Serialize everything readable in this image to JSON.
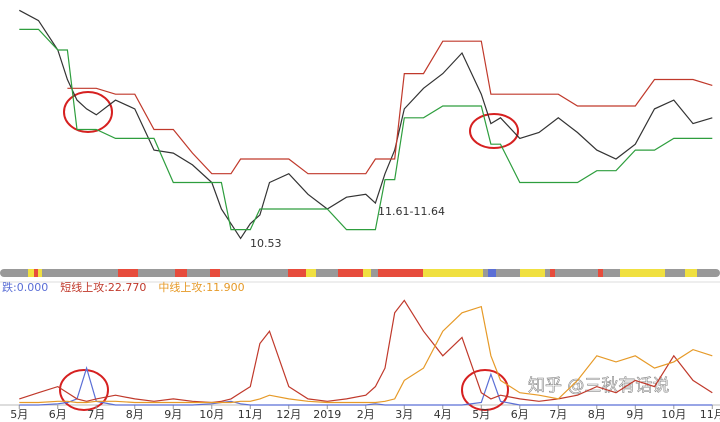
{
  "chart_data": [
    {
      "type": "line",
      "x": [
        0,
        0.5,
        1,
        1.25,
        1.5,
        1.75,
        2,
        2.5,
        3,
        3.5,
        4,
        4.5,
        5,
        5.25,
        5.5,
        5.75,
        6,
        6.25,
        6.5,
        7,
        7.5,
        8,
        8.5,
        9,
        9.25,
        9.5,
        9.75,
        10,
        10.5,
        11,
        11.5,
        12,
        12.25,
        12.5,
        13,
        13.5,
        14,
        14.5,
        15,
        15.5,
        16,
        16.5,
        17,
        17.5,
        18
      ],
      "xlim": [
        -0.5,
        18.2
      ],
      "ylim": [
        9.9,
        18.8
      ],
      "series": [
        {
          "color": "#333333",
          "values": [
            18.45,
            18.1,
            17.1,
            16.1,
            15.4,
            15.1,
            14.9,
            15.4,
            15.1,
            13.7,
            13.6,
            13.2,
            12.6,
            11.7,
            11.2,
            10.7,
            11.2,
            11.5,
            12.6,
            12.9,
            12.2,
            11.7,
            12.1,
            12.2,
            11.9,
            12.9,
            13.7,
            15.1,
            15.8,
            16.3,
            17.0,
            15.6,
            14.6,
            14.8,
            14.1,
            14.3,
            14.8,
            14.3,
            13.7,
            13.4,
            13.9,
            15.1,
            15.4,
            14.6,
            14.8
          ]
        },
        {
          "color": "#c0392b",
          "values": [
            null,
            null,
            null,
            15.8,
            15.8,
            15.8,
            15.8,
            15.6,
            15.6,
            14.4,
            14.4,
            13.6,
            12.9,
            12.9,
            12.9,
            13.4,
            13.4,
            13.4,
            13.4,
            13.4,
            12.9,
            12.9,
            12.9,
            12.9,
            13.4,
            13.4,
            13.4,
            16.3,
            16.3,
            17.4,
            17.4,
            17.4,
            15.6,
            15.6,
            15.6,
            15.6,
            15.6,
            15.2,
            15.2,
            15.2,
            15.2,
            16.1,
            16.1,
            16.1,
            15.9
          ]
        },
        {
          "color": "#2e9e3e",
          "values": [
            17.8,
            17.8,
            17.1,
            17.1,
            14.4,
            14.4,
            14.4,
            14.1,
            14.1,
            14.1,
            12.6,
            12.6,
            12.6,
            12.6,
            11.0,
            11.0,
            11.0,
            11.7,
            11.7,
            11.7,
            11.7,
            11.7,
            11.0,
            11.0,
            11.0,
            12.7,
            12.7,
            14.8,
            14.8,
            15.2,
            15.2,
            15.2,
            13.9,
            13.9,
            12.6,
            12.6,
            12.6,
            12.6,
            13.0,
            13.0,
            13.7,
            13.7,
            14.1,
            14.1,
            14.1
          ]
        }
      ],
      "annotations": [
        "10.53",
        "11.61-11.64"
      ],
      "watermark": "知乎 @三秋有话说"
    },
    {
      "type": "line",
      "x": [
        0,
        0.5,
        1,
        1.25,
        1.5,
        1.75,
        2,
        2.5,
        3,
        3.5,
        4,
        4.5,
        5,
        5.25,
        5.5,
        5.75,
        6,
        6.25,
        6.5,
        7,
        7.5,
        8,
        8.5,
        9,
        9.25,
        9.5,
        9.75,
        10,
        10.5,
        11,
        11.5,
        12,
        12.25,
        12.5,
        13,
        13.5,
        14,
        14.5,
        15,
        15.5,
        16,
        16.5,
        17,
        17.5,
        18
      ],
      "xlim": [
        -0.5,
        18.2
      ],
      "ylim": [
        0,
        100
      ],
      "xticks": [
        {
          "value": 0,
          "label": "5月"
        },
        {
          "value": 1,
          "label": "6月"
        },
        {
          "value": 2,
          "label": "7月"
        },
        {
          "value": 3,
          "label": "8月"
        },
        {
          "value": 4,
          "label": "9月"
        },
        {
          "value": 5,
          "label": "10月"
        },
        {
          "value": 6,
          "label": "11月"
        },
        {
          "value": 7,
          "label": "12月"
        },
        {
          "value": 8,
          "label": "2019"
        },
        {
          "value": 9,
          "label": "2月"
        },
        {
          "value": 10,
          "label": "3月"
        },
        {
          "value": 11,
          "label": "4月"
        },
        {
          "value": 12,
          "label": "5月"
        },
        {
          "value": 13,
          "label": "6月"
        },
        {
          "value": 14,
          "label": "7月"
        },
        {
          "value": 15,
          "label": "8月"
        },
        {
          "value": 16,
          "label": "9月"
        },
        {
          "value": 17,
          "label": "10月"
        },
        {
          "value": 18,
          "label": "11月"
        }
      ],
      "series": [
        {
          "name": "跌:0.000",
          "color": "#5b6fd6",
          "values": [
            0,
            0,
            1,
            2,
            5,
            30,
            3,
            0,
            0,
            0,
            0,
            0,
            1,
            2,
            3,
            1,
            0,
            0,
            0,
            0,
            0,
            0,
            0,
            0,
            1,
            0,
            0,
            0,
            0,
            0,
            0,
            2,
            25,
            3,
            0,
            0,
            0,
            0,
            0,
            0,
            0,
            0,
            0,
            0,
            0
          ]
        },
        {
          "name": "短线上攻:22.770",
          "color": "#c0392b",
          "values": [
            5,
            10,
            15,
            10,
            5,
            3,
            5,
            8,
            5,
            3,
            5,
            3,
            2,
            3,
            5,
            10,
            15,
            50,
            60,
            15,
            5,
            3,
            5,
            8,
            15,
            30,
            75,
            85,
            60,
            40,
            55,
            10,
            5,
            8,
            5,
            3,
            5,
            8,
            15,
            10,
            20,
            15,
            40,
            20,
            10
          ]
        },
        {
          "name": "中线上攻:11.900",
          "color": "#e69a28",
          "values": [
            2,
            2,
            3,
            3,
            2,
            2,
            3,
            3,
            2,
            2,
            2,
            2,
            2,
            2,
            2,
            3,
            3,
            5,
            8,
            5,
            3,
            2,
            2,
            2,
            2,
            3,
            5,
            20,
            30,
            60,
            75,
            80,
            40,
            20,
            10,
            8,
            5,
            20,
            40,
            35,
            40,
            30,
            35,
            45,
            40
          ]
        }
      ]
    }
  ]
}
